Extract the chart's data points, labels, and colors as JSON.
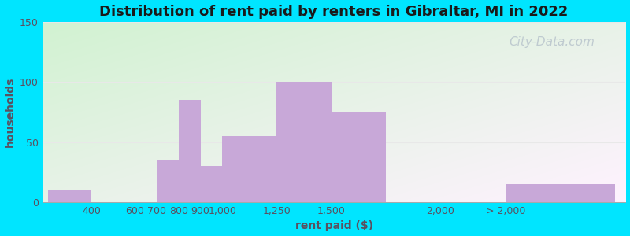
{
  "title": "Distribution of rent paid by renters in Gibraltar, MI in 2022",
  "xlabel": "rent paid ($)",
  "ylabel": "households",
  "bar_color": "#c8a8d8",
  "background_outer": "#00e5ff",
  "ylim": [
    0,
    150
  ],
  "yticks": [
    0,
    50,
    100,
    150
  ],
  "title_fontsize": 13,
  "axis_label_fontsize": 10,
  "tick_fontsize": 9,
  "bar_lefts": [
    200,
    600,
    700,
    800,
    900,
    1000,
    1250,
    1500,
    2000,
    2300
  ],
  "bar_widths": [
    200,
    100,
    100,
    100,
    100,
    250,
    250,
    250,
    300,
    500
  ],
  "bar_heights": [
    10,
    0,
    35,
    85,
    30,
    55,
    100,
    75,
    0,
    15
  ],
  "xlim": [
    175,
    2850
  ],
  "xtick_positions": [
    400,
    600,
    700,
    800,
    900,
    1000,
    1250,
    1500,
    2000,
    2300
  ],
  "xtick_labels": [
    "400",
    "600",
    "700",
    "800",
    "900",
    "1,000",
    "1,250",
    "1,500",
    "2,000",
    "> 2,000"
  ],
  "watermark_text": "City-Data.com",
  "watermark_color": "#b8c4cc",
  "watermark_fontsize": 11,
  "grid_color": "#e8e8e8",
  "text_color": "#5a5060",
  "title_color": "#1a1a1a"
}
